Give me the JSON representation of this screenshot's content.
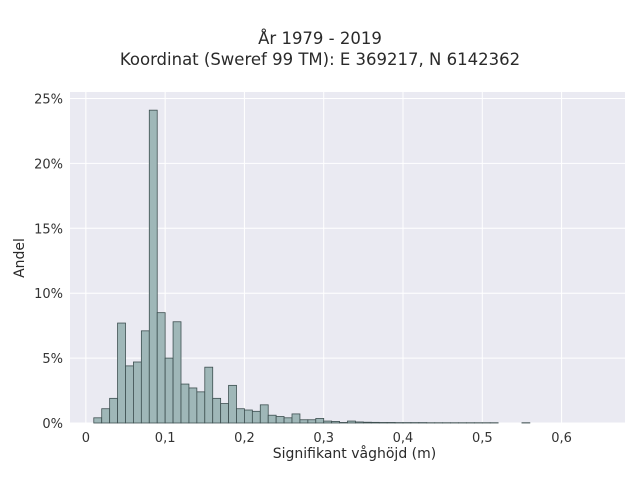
{
  "chart_data": {
    "type": "bar",
    "title": "År 1979 - 2019",
    "subtitle": "Koordinat (Sweref 99 TM): E 369217, N 6142362",
    "xlabel": "Signifikant våghöjd (m)",
    "ylabel": "Andel",
    "xlim": [
      -0.02,
      0.68
    ],
    "ylim": [
      0,
      25.5
    ],
    "x_ticks": [
      0,
      0.1,
      0.2,
      0.3,
      0.4,
      0.5,
      0.6
    ],
    "x_tick_labels": [
      "0",
      "0,1",
      "0,2",
      "0,3",
      "0,4",
      "0,5",
      "0,6"
    ],
    "y_ticks": [
      0,
      5,
      10,
      15,
      20,
      25
    ],
    "y_tick_labels": [
      "0%",
      "5%",
      "10%",
      "15%",
      "20%",
      "25%"
    ],
    "bin_width": 0.01,
    "bin_starts": [
      0.01,
      0.02,
      0.03,
      0.04,
      0.05,
      0.06,
      0.07,
      0.08,
      0.09,
      0.1,
      0.11,
      0.12,
      0.13,
      0.14,
      0.15,
      0.16,
      0.17,
      0.18,
      0.19,
      0.2,
      0.21,
      0.22,
      0.23,
      0.24,
      0.25,
      0.26,
      0.27,
      0.28,
      0.29,
      0.3,
      0.31,
      0.32,
      0.33,
      0.34,
      0.35,
      0.36,
      0.37,
      0.38,
      0.39,
      0.4,
      0.41,
      0.42,
      0.43,
      0.44,
      0.45,
      0.46,
      0.47,
      0.48,
      0.49,
      0.5,
      0.51,
      0.52,
      0.53,
      0.54,
      0.55
    ],
    "values": [
      0.4,
      1.1,
      1.9,
      7.7,
      4.4,
      4.7,
      7.1,
      24.1,
      8.5,
      5.0,
      7.8,
      3.0,
      2.7,
      2.4,
      4.3,
      1.9,
      1.5,
      2.9,
      1.1,
      1.0,
      0.9,
      1.4,
      0.6,
      0.5,
      0.4,
      0.7,
      0.25,
      0.25,
      0.35,
      0.15,
      0.12,
      0.04,
      0.15,
      0.08,
      0.06,
      0.05,
      0.04,
      0.04,
      0.03,
      0.03,
      0.03,
      0.03,
      0.02,
      0.02,
      0.02,
      0.02,
      0.02,
      0.02,
      0.02,
      0.02,
      0.02,
      0.0,
      0.0,
      0.0,
      0.02
    ],
    "value_unit": "%",
    "grid": true,
    "legend": "none",
    "colors": {
      "bar_fill": "#9fb7b8",
      "bar_edge": "#3d4f50",
      "plot_background": "#eaeaf2",
      "grid": "#ffffff"
    }
  }
}
